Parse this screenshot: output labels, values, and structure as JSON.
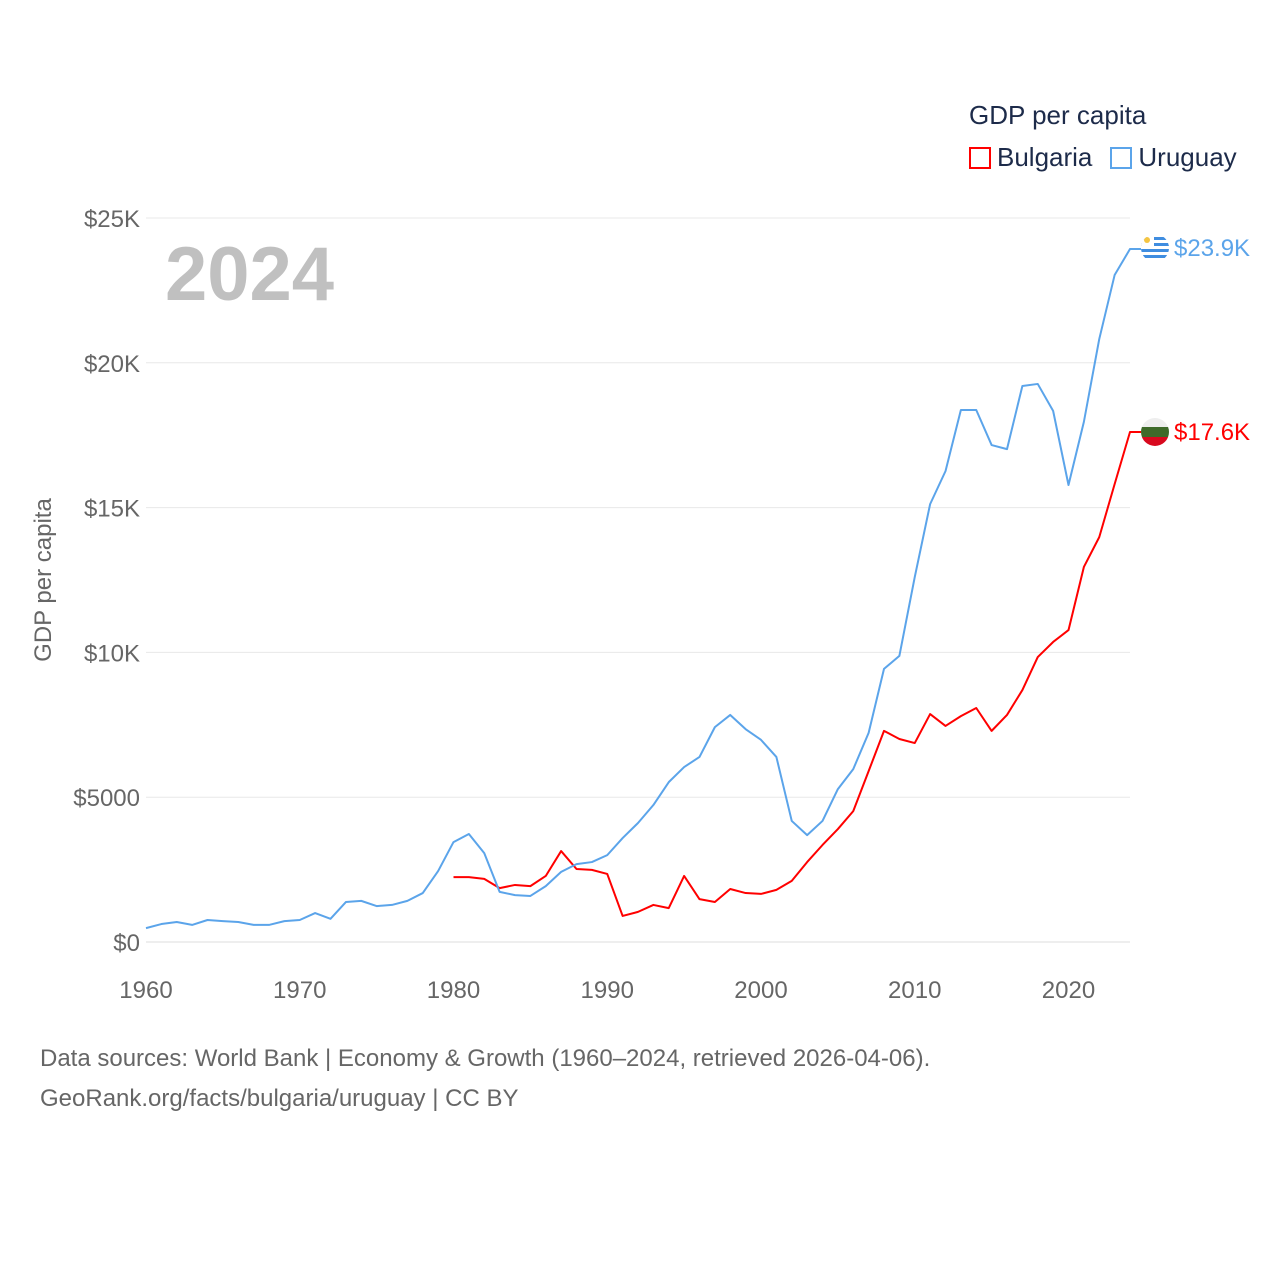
{
  "chart_data": {
    "type": "line",
    "title": "GDP per capita",
    "year_label": "2024",
    "ylabel": "GDP per capita",
    "xlabel": "",
    "xlim": [
      1960,
      2024
    ],
    "ylim": [
      0,
      25000
    ],
    "x_ticks": [
      "1960",
      "1970",
      "1980",
      "1990",
      "2000",
      "2010",
      "2020"
    ],
    "y_ticks": [
      {
        "value": 0,
        "label": "$0"
      },
      {
        "value": 5000,
        "label": "$5000"
      },
      {
        "value": 10000,
        "label": "$10K"
      },
      {
        "value": 15000,
        "label": "$15K"
      },
      {
        "value": 20000,
        "label": "$20K"
      },
      {
        "value": 25000,
        "label": "$25K"
      }
    ],
    "grid": true,
    "legend_position": "top-right",
    "series": [
      {
        "name": "Bulgaria",
        "color": "#ff0000",
        "end_label": "$17.6K",
        "start_year": 1980,
        "values": [
          2240,
          2240,
          2180,
          1860,
          1970,
          1930,
          2280,
          3140,
          2520,
          2490,
          2350,
          900,
          1040,
          1280,
          1170,
          2280,
          1480,
          1380,
          1830,
          1690,
          1660,
          1800,
          2110,
          2760,
          3350,
          3900,
          4520,
          5900,
          7290,
          7010,
          6870,
          7870,
          7460,
          7800,
          8080,
          7290,
          7840,
          8700,
          9840,
          10360,
          10770,
          12950,
          13980,
          15810,
          17610
        ]
      },
      {
        "name": "Uruguay",
        "color": "#5ba4ea",
        "end_label": "$23.9K",
        "start_year": 1960,
        "values": [
          480,
          620,
          690,
          590,
          760,
          720,
          690,
          590,
          590,
          720,
          760,
          1000,
          800,
          1380,
          1420,
          1240,
          1280,
          1420,
          1690,
          2450,
          3450,
          3730,
          3070,
          1730,
          1620,
          1590,
          1930,
          2420,
          2690,
          2760,
          3000,
          3590,
          4110,
          4730,
          5520,
          6040,
          6390,
          7420,
          7840,
          7350,
          6980,
          6390,
          4180,
          3690,
          4180,
          5280,
          5970,
          7220,
          9430,
          9880,
          12600,
          15120,
          16260,
          18370,
          18370,
          17160,
          17020,
          19200,
          19270,
          18340,
          15780,
          17960,
          20820,
          23030,
          23930
        ]
      }
    ]
  },
  "footer": {
    "line1": "Data sources: World Bank | Economy & Growth (1960–2024, retrieved 2026-04-06).",
    "line2": "GeoRank.org/facts/bulgaria/uruguay | CC BY"
  }
}
